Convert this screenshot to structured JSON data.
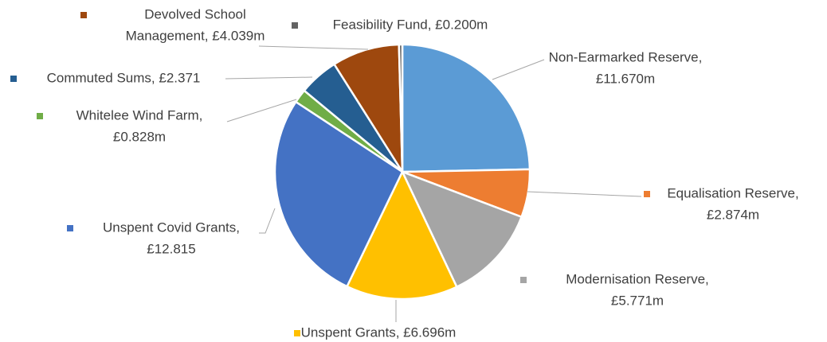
{
  "chart_data": {
    "type": "pie",
    "labels": [
      [
        "Non-Earmarked Reserve,",
        "£11.670m"
      ],
      [
        "Equalisation Reserve,",
        "£2.874m"
      ],
      [
        "Modernisation Reserve,",
        "£5.771m"
      ],
      [
        "Unspent Grants, £6.696m"
      ],
      [
        "Unspent Covid Grants,",
        "£12.815"
      ],
      [
        "Whitelee Wind Farm,",
        "£0.828m"
      ],
      [
        "Commuted Sums, £2.371"
      ],
      [
        "Devolved School",
        "Management, £4.039m"
      ],
      [
        "Feasibility Fund, £0.200m"
      ]
    ],
    "values": [
      11.67,
      2.874,
      5.771,
      6.696,
      12.815,
      0.828,
      2.371,
      4.039,
      0.2
    ],
    "colors": [
      "#5b9bd5",
      "#ed7d31",
      "#a5a5a5",
      "#ffc000",
      "#4472c4",
      "#70ad47",
      "#255e91",
      "#9e480e",
      "#636363"
    ]
  }
}
